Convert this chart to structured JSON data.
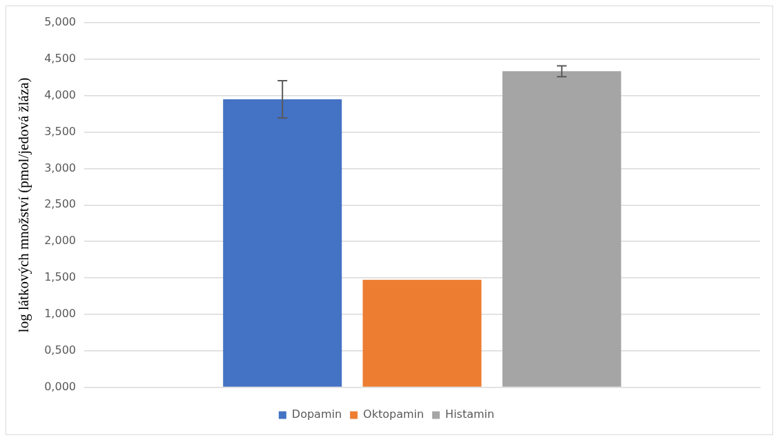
{
  "chart_data": {
    "type": "bar",
    "ylabel": "log látkových množství (pmol/jedová žláza)",
    "categories": [
      null
    ],
    "series": [
      {
        "name": "Dopamin",
        "color": "#4472c4",
        "values": [
          3.95
        ],
        "errors": [
          0.255
        ]
      },
      {
        "name": "Oktopamin",
        "color": "#ed7d31",
        "values": [
          1.475
        ]
      },
      {
        "name": "Histamin",
        "color": "#a5a5a5",
        "values": [
          4.335
        ],
        "errors": [
          0.075
        ]
      }
    ],
    "ylim": [
      0,
      5
    ],
    "yticks": [
      {
        "value": 0,
        "label": "0,000"
      },
      {
        "value": 0.5,
        "label": "0,500"
      },
      {
        "value": 1,
        "label": "1,000"
      },
      {
        "value": 1.5,
        "label": "1,500"
      },
      {
        "value": 2,
        "label": "2,000"
      },
      {
        "value": 2.5,
        "label": "2,500"
      },
      {
        "value": 3,
        "label": "3,000"
      },
      {
        "value": 3.5,
        "label": "3,500"
      },
      {
        "value": 4,
        "label": "4,000"
      },
      {
        "value": 4.5,
        "label": "4,500"
      },
      {
        "value": 5,
        "label": "5,000"
      }
    ],
    "grid": "y",
    "legend": "bottom"
  }
}
